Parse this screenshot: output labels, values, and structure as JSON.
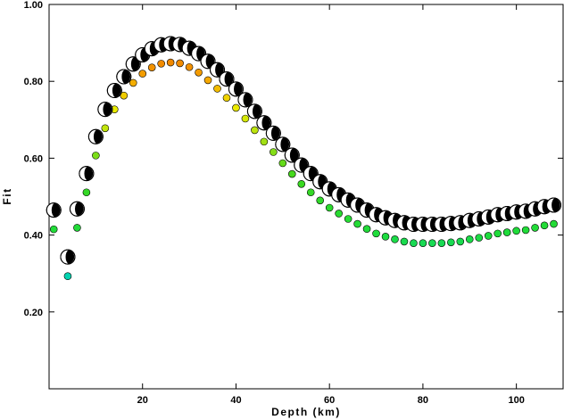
{
  "chart_data": {
    "type": "scatter",
    "title": "",
    "xlabel": "Depth (km)",
    "ylabel": "Fit",
    "xlim": [
      0,
      110
    ],
    "ylim": [
      0,
      1.0
    ],
    "x_ticks": [
      20,
      40,
      60,
      80,
      100
    ],
    "x_tick_labels": [
      "20",
      "40",
      "60",
      "80",
      "100"
    ],
    "y_ticks": [
      0.2,
      0.4,
      0.6,
      0.8,
      1.0
    ],
    "y_tick_labels": [
      "0.20",
      "0.40",
      "0.60",
      "0.80",
      "1.00"
    ],
    "grid": false,
    "series": [
      {
        "marker": "focal-mechanism",
        "x": [
          1,
          4,
          6,
          8,
          10,
          12,
          14,
          16,
          18,
          20,
          22,
          24,
          26,
          28,
          30,
          32,
          34,
          36,
          38,
          40,
          42,
          44,
          46,
          48,
          50,
          52,
          54,
          56,
          58,
          60,
          62,
          64,
          66,
          68,
          70,
          72,
          74,
          76,
          78,
          80,
          82,
          84,
          86,
          88,
          90,
          92,
          94,
          96,
          98,
          100,
          102,
          104,
          106,
          108
        ],
        "y": [
          0.465,
          0.343,
          0.468,
          0.56,
          0.656,
          0.727,
          0.776,
          0.812,
          0.845,
          0.869,
          0.885,
          0.895,
          0.898,
          0.896,
          0.886,
          0.872,
          0.852,
          0.83,
          0.806,
          0.78,
          0.752,
          0.722,
          0.692,
          0.665,
          0.636,
          0.608,
          0.582,
          0.56,
          0.539,
          0.52,
          0.505,
          0.491,
          0.478,
          0.465,
          0.453,
          0.445,
          0.438,
          0.432,
          0.428,
          0.428,
          0.428,
          0.428,
          0.43,
          0.432,
          0.438,
          0.442,
          0.447,
          0.453,
          0.456,
          0.46,
          0.462,
          0.468,
          0.474,
          0.478
        ]
      },
      {
        "marker": "fit-colored-dot",
        "x": [
          1,
          4,
          6,
          8,
          10,
          12,
          14,
          16,
          18,
          20,
          22,
          24,
          26,
          28,
          30,
          32,
          34,
          36,
          38,
          40,
          42,
          44,
          46,
          48,
          50,
          52,
          54,
          56,
          58,
          60,
          62,
          64,
          66,
          68,
          70,
          72,
          74,
          76,
          78,
          80,
          82,
          84,
          86,
          88,
          90,
          92,
          94,
          96,
          98,
          100,
          102,
          104,
          106,
          108
        ],
        "y": [
          0.415,
          0.293,
          0.419,
          0.511,
          0.607,
          0.678,
          0.727,
          0.763,
          0.796,
          0.82,
          0.836,
          0.846,
          0.849,
          0.847,
          0.837,
          0.823,
          0.803,
          0.781,
          0.757,
          0.731,
          0.703,
          0.673,
          0.643,
          0.616,
          0.587,
          0.559,
          0.533,
          0.511,
          0.49,
          0.471,
          0.456,
          0.442,
          0.429,
          0.416,
          0.404,
          0.396,
          0.389,
          0.383,
          0.379,
          0.379,
          0.379,
          0.379,
          0.381,
          0.383,
          0.389,
          0.393,
          0.398,
          0.404,
          0.407,
          0.411,
          0.413,
          0.419,
          0.425,
          0.429
        ]
      }
    ]
  }
}
